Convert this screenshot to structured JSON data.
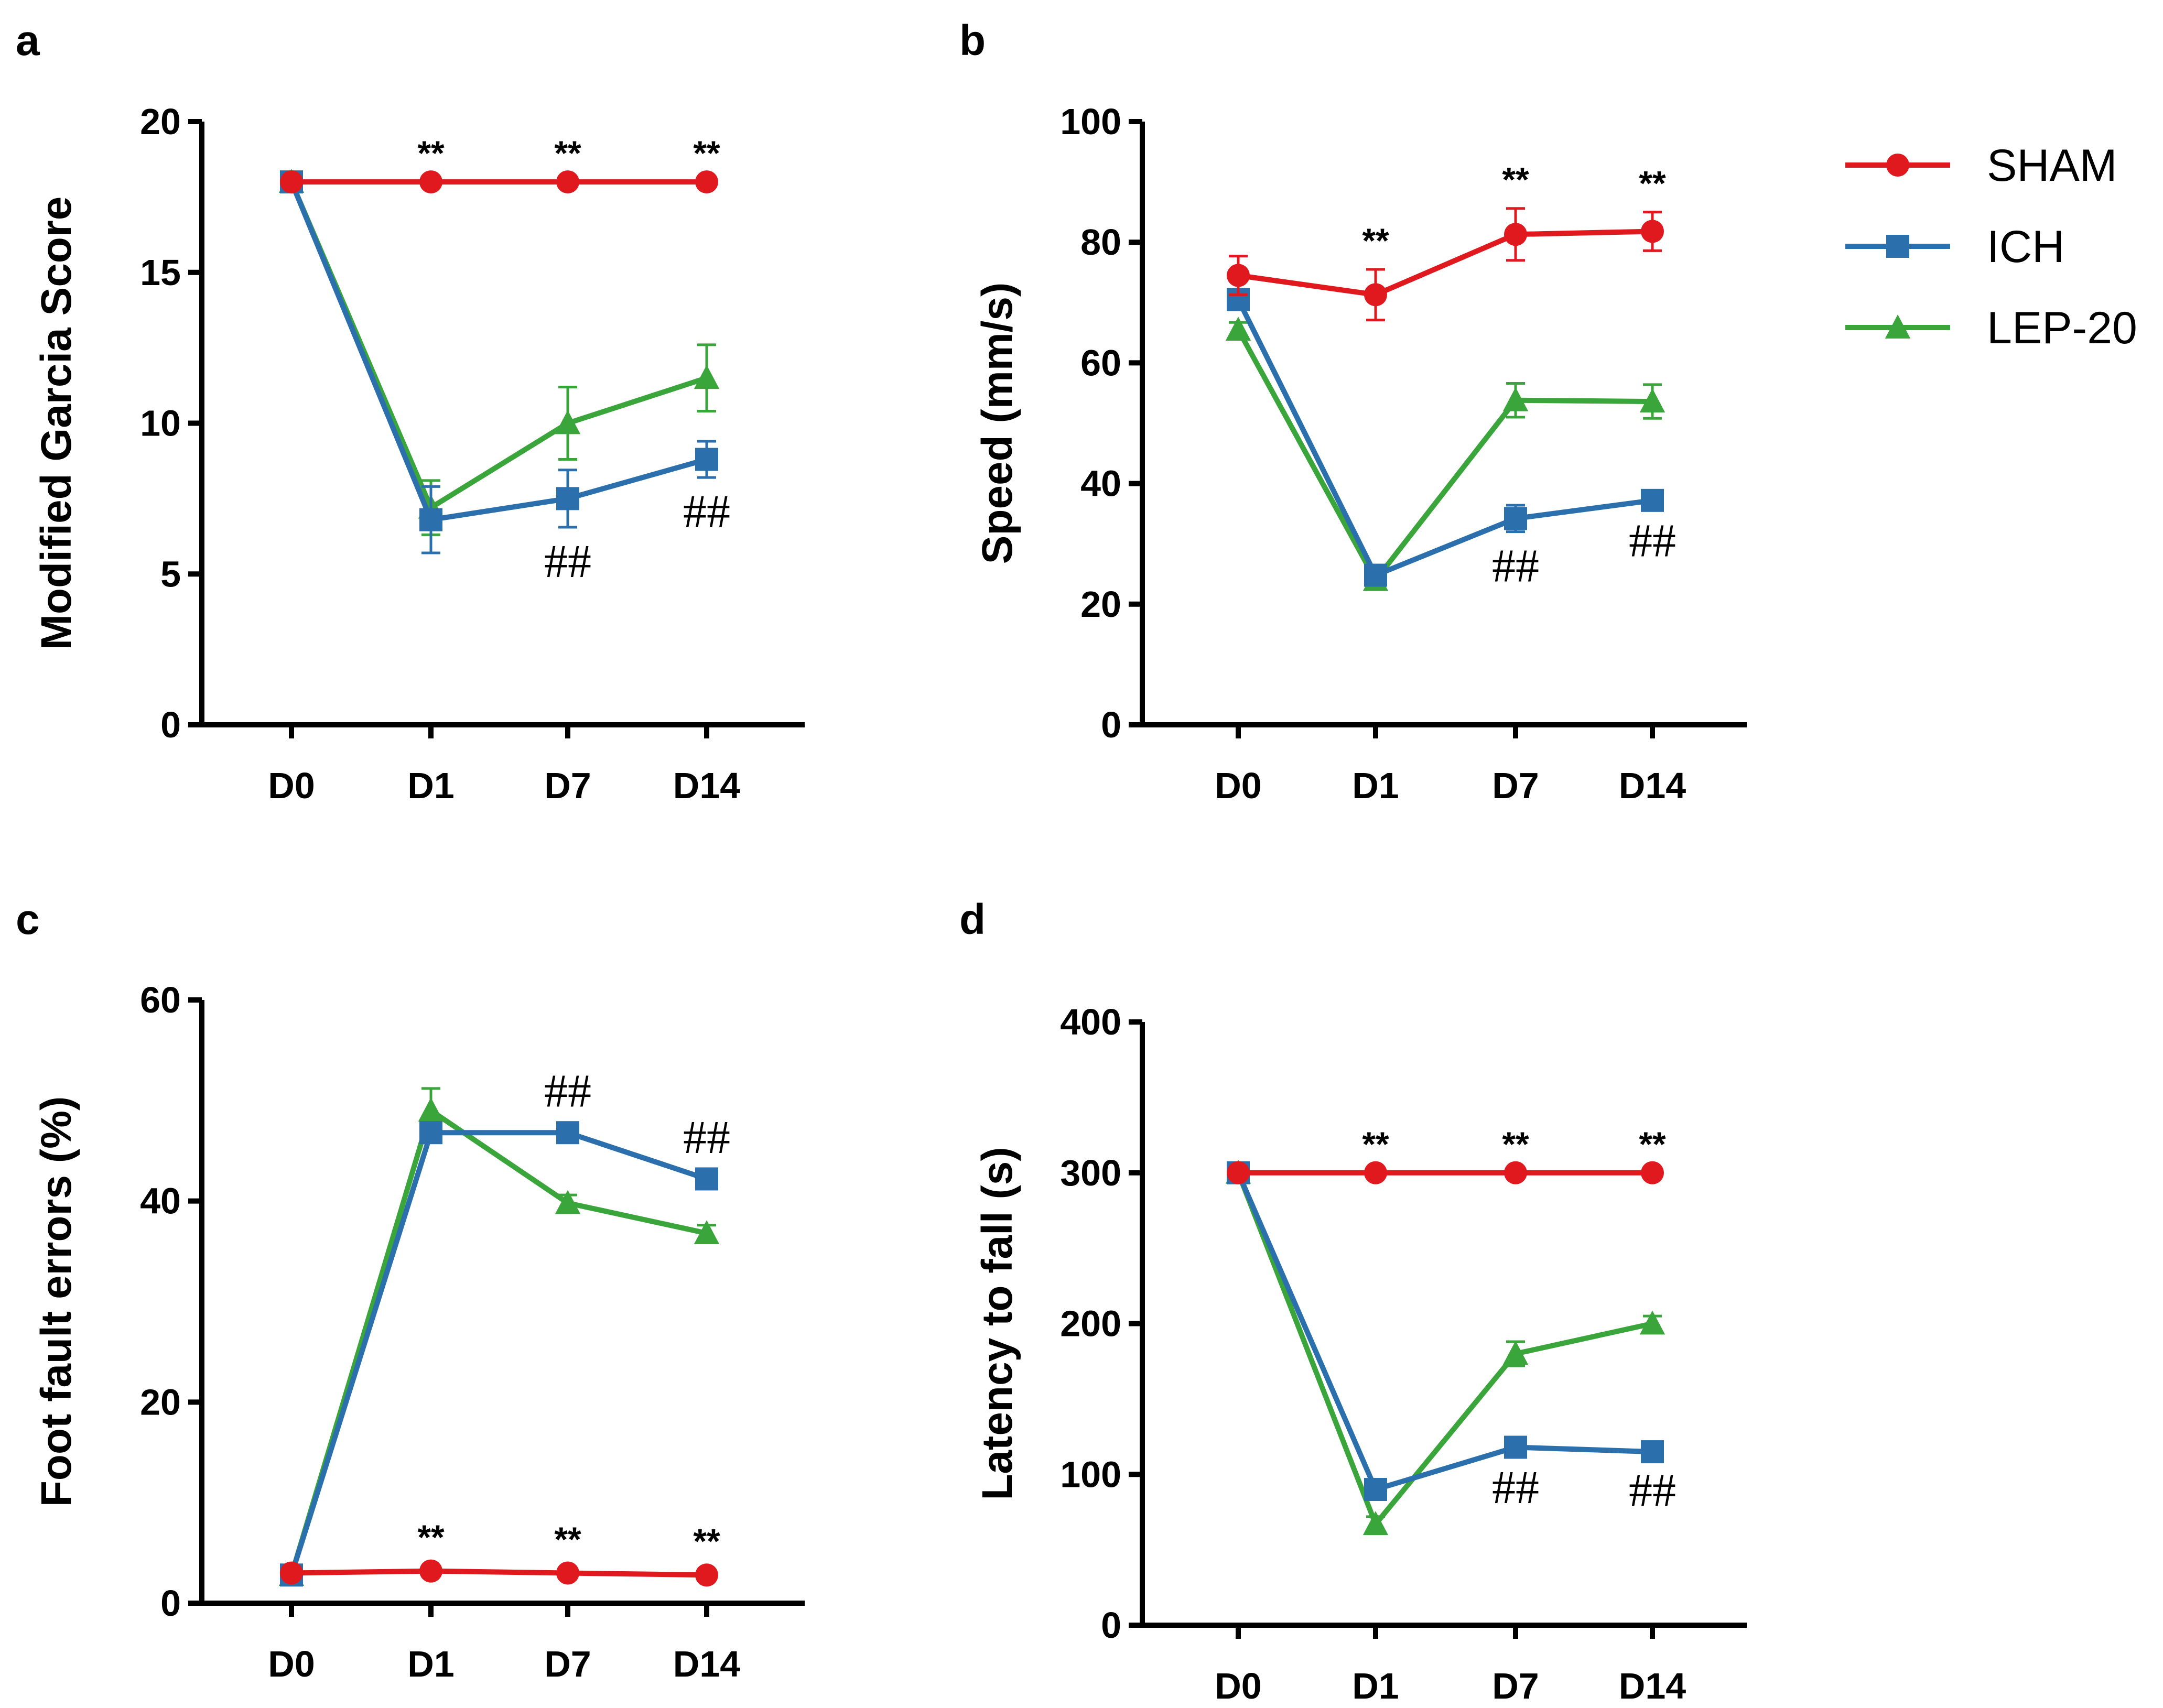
{
  "colors": {
    "SHAM": "#e0191f",
    "ICH": "#2b70ad",
    "LEP-20": "#3aa53a",
    "axis": "#000000"
  },
  "legend": {
    "items": [
      "SHAM",
      "ICH",
      "LEP-20"
    ]
  },
  "chart_data": [
    {
      "panel": "a",
      "type": "line",
      "categories": [
        "D0",
        "D1",
        "D7",
        "D14"
      ],
      "ylabel": "Modified Garcia Score",
      "ylim": [
        0,
        20
      ],
      "yticks": [
        0,
        5,
        10,
        15,
        20
      ],
      "series": [
        {
          "name": "SHAM",
          "marker": "circle",
          "values": [
            18,
            18,
            18,
            18
          ],
          "err": [
            0,
            0,
            0,
            0
          ]
        },
        {
          "name": "ICH",
          "marker": "square",
          "values": [
            18,
            6.8,
            7.5,
            8.8
          ],
          "err": [
            0,
            1.1,
            0.95,
            0.6
          ]
        },
        {
          "name": "LEP-20",
          "marker": "triangle",
          "values": [
            18,
            7.2,
            10,
            11.5
          ],
          "err": [
            0,
            0.9,
            1.2,
            1.1
          ]
        }
      ],
      "annotations": [
        {
          "text": "**",
          "category": "D1",
          "y": 18,
          "pos": "above"
        },
        {
          "text": "**",
          "category": "D7",
          "y": 18,
          "pos": "above"
        },
        {
          "text": "**",
          "category": "D14",
          "y": 18,
          "pos": "above"
        },
        {
          "text": "##",
          "category": "D7",
          "y": 6.55,
          "pos": "below"
        },
        {
          "text": "##",
          "category": "D14",
          "y": 8.2,
          "pos": "below"
        }
      ]
    },
    {
      "panel": "b",
      "type": "line",
      "categories": [
        "D0",
        "D1",
        "D7",
        "D14"
      ],
      "ylabel": "Speed (mm/s)",
      "ylim": [
        0,
        100
      ],
      "yticks": [
        0,
        20,
        40,
        60,
        80,
        100
      ],
      "series": [
        {
          "name": "SHAM",
          "marker": "circle",
          "values": [
            74.5,
            71.3,
            81.3,
            81.8
          ],
          "err": [
            3.2,
            4.2,
            4.3,
            3.2
          ]
        },
        {
          "name": "ICH",
          "marker": "square",
          "values": [
            70.5,
            24.8,
            34.2,
            37.2
          ],
          "err": [
            1.2,
            1.0,
            2.2,
            1.0
          ]
        },
        {
          "name": "LEP-20",
          "marker": "triangle",
          "values": [
            65.5,
            24.0,
            53.8,
            53.6
          ],
          "err": [
            1.2,
            1.0,
            2.8,
            2.8
          ]
        }
      ],
      "annotations": [
        {
          "text": "**",
          "category": "D1",
          "y": 75.5,
          "pos": "above"
        },
        {
          "text": "**",
          "category": "D7",
          "y": 85.6,
          "pos": "above"
        },
        {
          "text": "**",
          "category": "D14",
          "y": 85.0,
          "pos": "above"
        },
        {
          "text": "##",
          "category": "D7",
          "y": 32.0,
          "pos": "below"
        },
        {
          "text": "##",
          "category": "D14",
          "y": 36.2,
          "pos": "below"
        }
      ]
    },
    {
      "panel": "c",
      "type": "line",
      "categories": [
        "D0",
        "D1",
        "D7",
        "D14"
      ],
      "ylabel": "Foot fault errors (%)",
      "ylim": [
        0,
        60
      ],
      "yticks": [
        0,
        20,
        40,
        60
      ],
      "series": [
        {
          "name": "SHAM",
          "marker": "circle",
          "values": [
            3.0,
            3.2,
            3.0,
            2.8
          ],
          "err": [
            0.3,
            0.5,
            0.5,
            0.5
          ]
        },
        {
          "name": "ICH",
          "marker": "square",
          "values": [
            2.8,
            46.8,
            46.8,
            42.2
          ],
          "err": [
            0.3,
            0.7,
            0.5,
            0.5
          ]
        },
        {
          "name": "LEP-20",
          "marker": "triangle",
          "values": [
            2.8,
            49.0,
            39.8,
            36.8
          ],
          "err": [
            0.3,
            2.2,
            0.8,
            0.8
          ]
        }
      ],
      "annotations": [
        {
          "text": "**",
          "category": "D1",
          "y": 3.7,
          "pos": "above"
        },
        {
          "text": "**",
          "category": "D7",
          "y": 3.5,
          "pos": "above"
        },
        {
          "text": "**",
          "category": "D14",
          "y": 3.3,
          "pos": "above"
        },
        {
          "text": "##",
          "category": "D7",
          "y": 47.3,
          "pos": "above"
        },
        {
          "text": "##",
          "category": "D14",
          "y": 42.7,
          "pos": "above"
        }
      ]
    },
    {
      "panel": "d",
      "type": "line",
      "categories": [
        "D0",
        "D1",
        "D7",
        "D14"
      ],
      "ylabel": "Latency to fall (s)",
      "ylim": [
        0,
        400
      ],
      "yticks": [
        0,
        100,
        200,
        300,
        400
      ],
      "series": [
        {
          "name": "SHAM",
          "marker": "circle",
          "values": [
            300,
            300,
            300,
            300
          ],
          "err": [
            0,
            0,
            0,
            0
          ]
        },
        {
          "name": "ICH",
          "marker": "square",
          "values": [
            300,
            90,
            118,
            115
          ],
          "err": [
            0,
            4,
            4,
            3
          ]
        },
        {
          "name": "LEP-20",
          "marker": "triangle",
          "values": [
            300,
            67,
            180,
            200
          ],
          "err": [
            0,
            5,
            8,
            5
          ]
        }
      ],
      "annotations": [
        {
          "text": "**",
          "category": "D1",
          "y": 300,
          "pos": "above"
        },
        {
          "text": "**",
          "category": "D7",
          "y": 300,
          "pos": "above"
        },
        {
          "text": "**",
          "category": "D14",
          "y": 300,
          "pos": "above"
        },
        {
          "text": "##",
          "category": "D7",
          "y": 114,
          "pos": "below"
        },
        {
          "text": "##",
          "category": "D14",
          "y": 112,
          "pos": "below"
        }
      ]
    }
  ]
}
